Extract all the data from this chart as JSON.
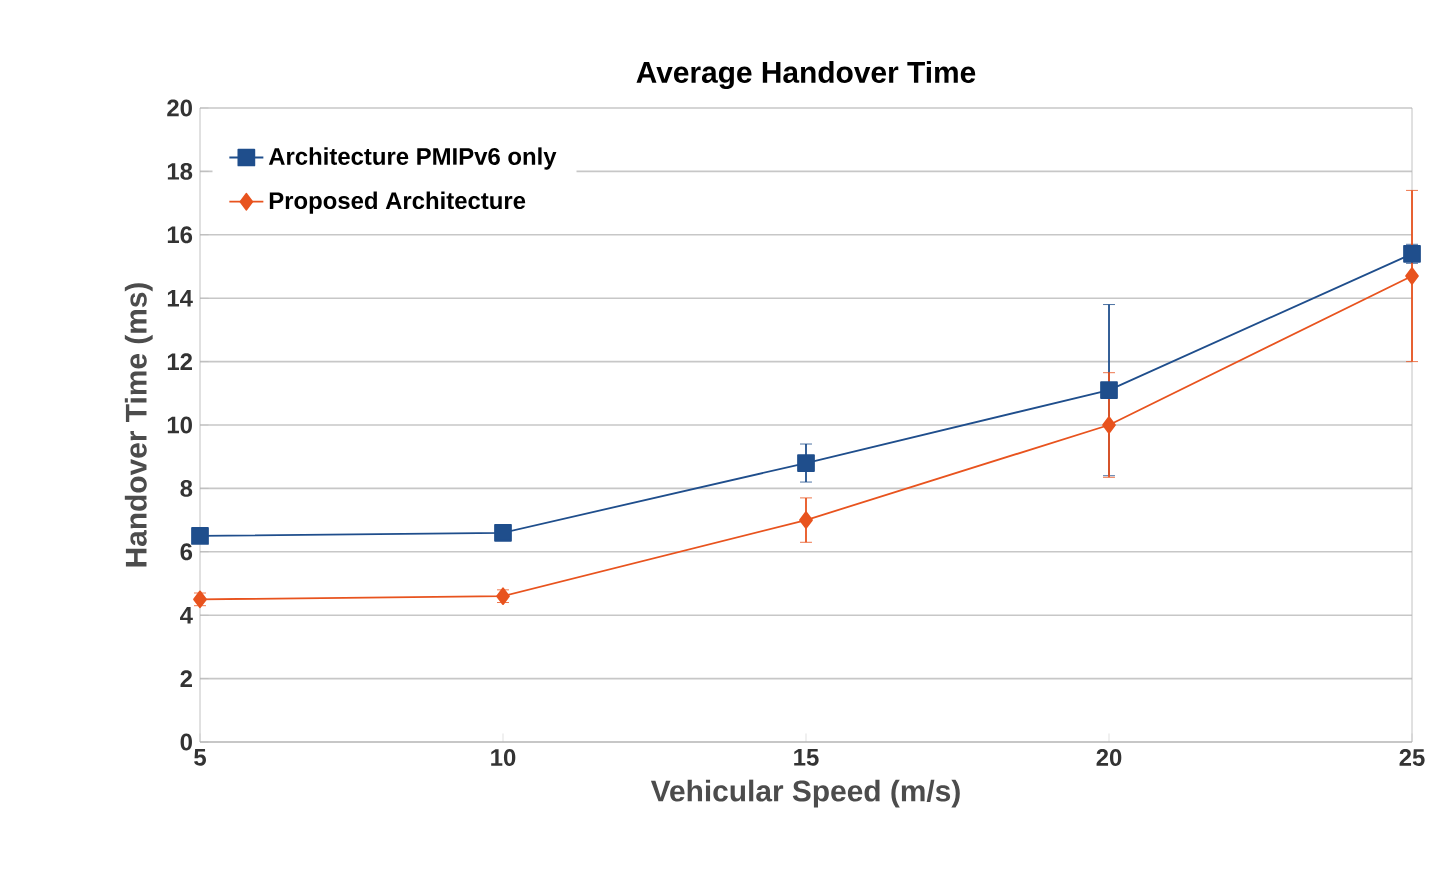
{
  "chart_data": {
    "type": "line",
    "title": "Average Handover Time",
    "xlabel": "Vehicular Speed (m/s)",
    "ylabel": "Handover Time (ms)",
    "x": [
      5,
      10,
      15,
      20,
      25
    ],
    "series": [
      {
        "name": "Architecture PMIPv6 only",
        "color": "#1f4e8c",
        "marker": "square",
        "values": [
          6.5,
          6.6,
          8.8,
          11.1,
          15.4
        ],
        "errors": [
          0.2,
          0.2,
          0.6,
          2.7,
          0.3
        ]
      },
      {
        "name": "Proposed Architecture",
        "color": "#e8531e",
        "marker": "diamond",
        "values": [
          4.5,
          4.6,
          7.0,
          10.0,
          14.7
        ],
        "errors": [
          0.2,
          0.2,
          0.7,
          1.65,
          2.7
        ]
      }
    ],
    "xlim": [
      5,
      25
    ],
    "xticks": [
      5,
      10,
      15,
      20,
      25
    ],
    "ylim": [
      0,
      20
    ],
    "yticks": [
      0,
      2,
      4,
      6,
      8,
      10,
      12,
      14,
      16,
      18,
      20
    ],
    "grid": "y",
    "legend": "top left",
    "line_style": "solid"
  }
}
